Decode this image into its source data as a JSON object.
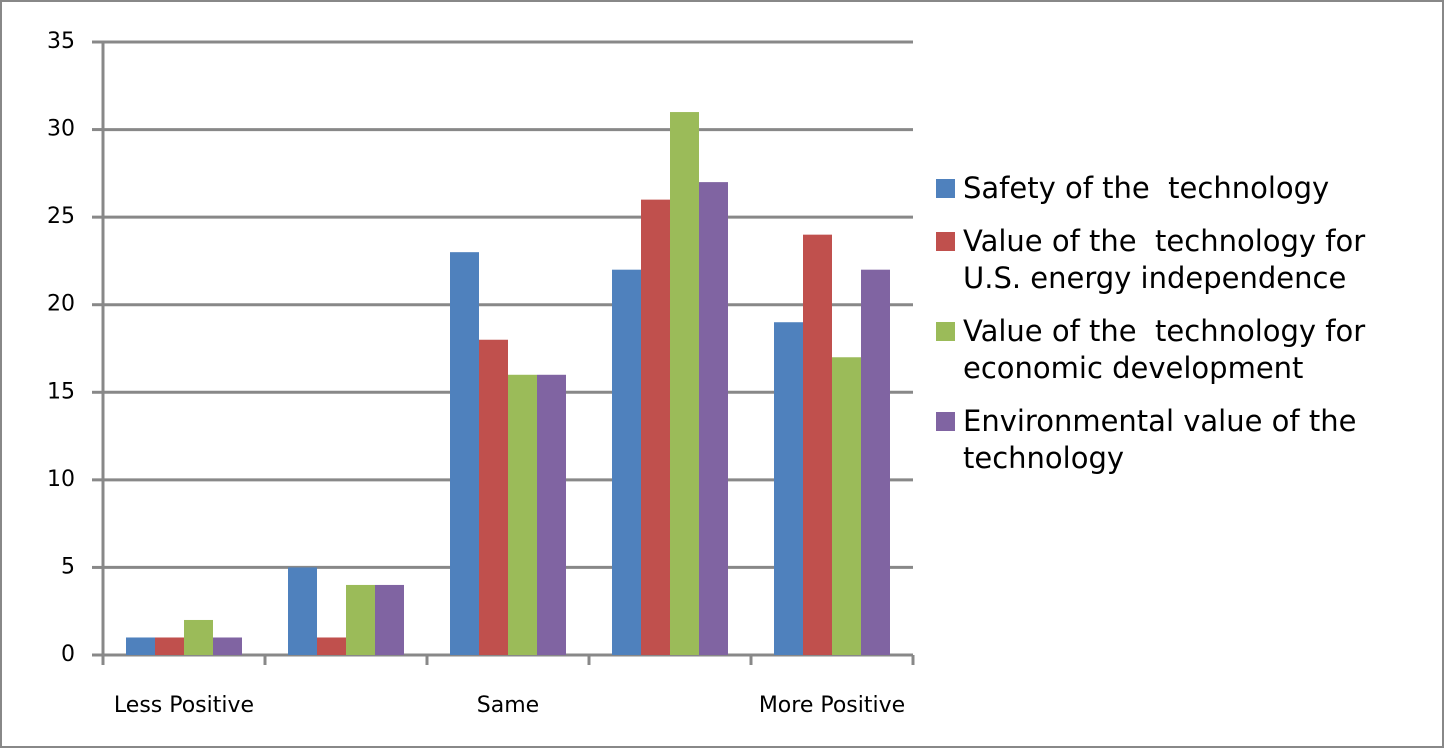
{
  "chart_data": {
    "type": "bar",
    "categories": [
      "Less Positive",
      null,
      "Same",
      null,
      "More Positive"
    ],
    "series": [
      {
        "name": "Safety of the  technology",
        "color": "#4f81bd",
        "values": [
          1,
          5,
          23,
          22,
          19
        ]
      },
      {
        "name": "Value of the  technology for U.S. energy independence",
        "color": "#c0504d",
        "values": [
          1,
          1,
          18,
          26,
          24
        ]
      },
      {
        "name": "Value of the  technology for economic development",
        "color": "#9bbb59",
        "values": [
          2,
          4,
          16,
          31,
          17
        ]
      },
      {
        "name": "Environmental value of the technology",
        "color": "#8064a2",
        "values": [
          1,
          4,
          16,
          27,
          22
        ]
      }
    ],
    "ylim": [
      0,
      35
    ],
    "yticks": [
      0,
      5,
      10,
      15,
      20,
      25,
      30,
      35
    ],
    "grid": true
  }
}
